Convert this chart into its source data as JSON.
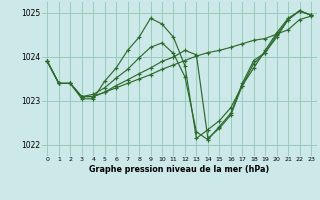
{
  "background_color": "#cce8e8",
  "grid_color": "#99ccbb",
  "line_color": "#2d6b2d",
  "xlabel": "Graphe pression niveau de la mer (hPa)",
  "ylim": [
    1021.75,
    1025.25
  ],
  "xlim": [
    -0.5,
    23.5
  ],
  "yticks": [
    1022,
    1023,
    1024,
    1025
  ],
  "xticks": [
    0,
    1,
    2,
    3,
    4,
    5,
    6,
    7,
    8,
    9,
    10,
    11,
    12,
    13,
    14,
    15,
    16,
    17,
    18,
    19,
    20,
    21,
    22,
    23
  ],
  "series": [
    [
      1023.9,
      1023.4,
      1023.4,
      1023.05,
      1023.05,
      1023.45,
      1023.75,
      1024.15,
      1024.45,
      1024.88,
      1024.75,
      1024.45,
      1023.8,
      1022.15,
      1022.35,
      1022.55,
      1022.85,
      1023.35,
      1023.75,
      1024.15,
      1024.55,
      1024.88,
      1025.05,
      1024.95
    ],
    [
      1023.9,
      1023.4,
      1023.4,
      1023.1,
      1023.1,
      1023.2,
      1023.3,
      1023.4,
      1023.5,
      1023.6,
      1023.72,
      1023.82,
      1023.92,
      1024.02,
      1024.1,
      1024.15,
      1024.22,
      1024.3,
      1024.38,
      1024.42,
      1024.52,
      1024.62,
      1024.85,
      1024.93
    ],
    [
      1023.9,
      1023.4,
      1023.4,
      1023.1,
      1023.1,
      1023.2,
      1023.35,
      1023.48,
      1023.62,
      1023.75,
      1023.9,
      1024.0,
      1024.15,
      1024.05,
      1022.15,
      1022.38,
      1022.68,
      1023.35,
      1023.85,
      1024.1,
      1024.45,
      1024.85,
      1025.05,
      1024.95
    ],
    [
      1023.9,
      1023.4,
      1023.4,
      1023.1,
      1023.15,
      1023.3,
      1023.52,
      1023.72,
      1023.98,
      1024.22,
      1024.32,
      1024.08,
      1023.55,
      1022.3,
      1022.12,
      1022.42,
      1022.72,
      1023.4,
      1023.92,
      1024.1,
      1024.5,
      1024.85,
      1025.05,
      1024.95
    ]
  ]
}
